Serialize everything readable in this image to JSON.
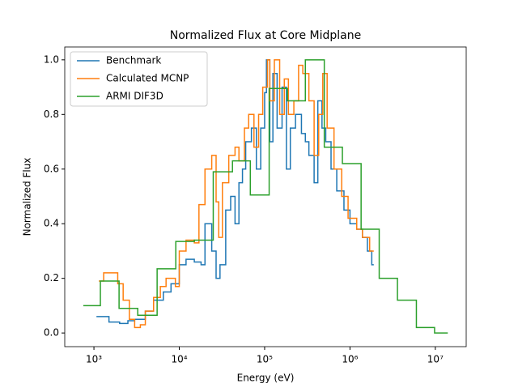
{
  "chart_data": {
    "type": "line",
    "drawstyle": "steps-post",
    "title": "Normalized Flux at Core Midplane",
    "xlabel": "Energy (eV)",
    "ylabel": "Normalized Flux",
    "xscale": "log",
    "legend": "upper left",
    "xlim": [
      455,
      23000000
    ],
    "ylim": [
      -0.05,
      1.047
    ],
    "xticks": [
      {
        "value": 1000,
        "label": "10³"
      },
      {
        "value": 10000,
        "label": "10⁴"
      },
      {
        "value": 100000,
        "label": "10⁵"
      },
      {
        "value": 1000000,
        "label": "10⁶"
      },
      {
        "value": 10000000,
        "label": "10⁷"
      }
    ],
    "yticks": [
      {
        "value": 0,
        "label": "0.0"
      },
      {
        "value": 0.2,
        "label": "0.2"
      },
      {
        "value": 0.4,
        "label": "0.4"
      },
      {
        "value": 0.6,
        "label": "0.6"
      },
      {
        "value": 0.8,
        "label": "0.8"
      },
      {
        "value": 1,
        "label": "1.0"
      }
    ],
    "series": [
      {
        "name": "Benchmark",
        "color": "#1f77b4",
        "x": [
          1070,
          1500,
          2000,
          2500,
          3000,
          4000,
          5000,
          6500,
          8000,
          10000,
          12000,
          15000,
          18000,
          20000,
          24000,
          27000,
          30000,
          35000,
          40000,
          45000,
          50000,
          55000,
          60000,
          70000,
          80000,
          90000,
          100000,
          105000,
          115000,
          125000,
          140000,
          160000,
          180000,
          200000,
          230000,
          270000,
          300000,
          330000,
          380000,
          420000,
          470000,
          520000,
          600000,
          700000,
          850000,
          1000000,
          1200000,
          1400000,
          1600000,
          1800000,
          1900000
        ],
        "values": [
          0.06,
          0.04,
          0.035,
          0.045,
          0.05,
          0.08,
          0.12,
          0.15,
          0.18,
          0.25,
          0.27,
          0.26,
          0.25,
          0.4,
          0.3,
          0.2,
          0.25,
          0.45,
          0.5,
          0.4,
          0.55,
          0.6,
          0.7,
          0.75,
          0.6,
          0.75,
          0.88,
          1.0,
          0.7,
          0.95,
          0.75,
          0.9,
          0.6,
          0.75,
          0.8,
          0.73,
          0.7,
          0.65,
          0.55,
          0.85,
          0.75,
          0.7,
          0.6,
          0.52,
          0.45,
          0.4,
          0.38,
          0.35,
          0.3,
          0.25,
          0.25
        ]
      },
      {
        "name": "Calculated MCNP",
        "color": "#ff7f0e",
        "x": [
          1140,
          1300,
          1600,
          1900,
          2200,
          2600,
          3000,
          3500,
          4000,
          5000,
          6000,
          7000,
          8000,
          9000,
          10000,
          12000,
          15000,
          17000,
          20000,
          24000,
          27000,
          29000,
          32000,
          38000,
          45000,
          50000,
          58000,
          65000,
          75000,
          85000,
          95000,
          108000,
          115000,
          130000,
          150000,
          170000,
          190000,
          220000,
          250000,
          280000,
          330000,
          380000,
          430000,
          480000,
          540000,
          650000,
          800000,
          950000,
          1200000,
          1400000,
          1700000,
          1900000
        ],
        "values": [
          0.19,
          0.22,
          0.22,
          0.18,
          0.12,
          0.05,
          0.02,
          0.03,
          0.08,
          0.13,
          0.17,
          0.2,
          0.2,
          0.17,
          0.3,
          0.34,
          0.33,
          0.47,
          0.6,
          0.65,
          0.48,
          0.35,
          0.55,
          0.65,
          0.68,
          0.63,
          0.75,
          0.8,
          0.68,
          0.8,
          0.9,
          1.0,
          0.85,
          1.0,
          0.8,
          0.93,
          0.8,
          0.85,
          0.98,
          0.95,
          0.85,
          0.65,
          0.8,
          0.95,
          0.75,
          0.6,
          0.5,
          0.42,
          0.38,
          0.35,
          0.3,
          0.3
        ]
      },
      {
        "name": "ARMI DIF3D",
        "color": "#2ca02c",
        "x": [
          750,
          1190,
          1970,
          3260,
          5500,
          9100,
          15000,
          25000,
          42000,
          68000,
          113000,
          185000,
          300000,
          500000,
          815000,
          1350000,
          2200000,
          3600000,
          6000000,
          9800000,
          14000000
        ],
        "values": [
          0.1,
          0.19,
          0.09,
          0.065,
          0.235,
          0.335,
          0.34,
          0.59,
          0.63,
          0.505,
          0.895,
          0.85,
          1.0,
          0.68,
          0.62,
          0.38,
          0.2,
          0.12,
          0.02,
          0.0,
          0.0
        ]
      }
    ]
  }
}
